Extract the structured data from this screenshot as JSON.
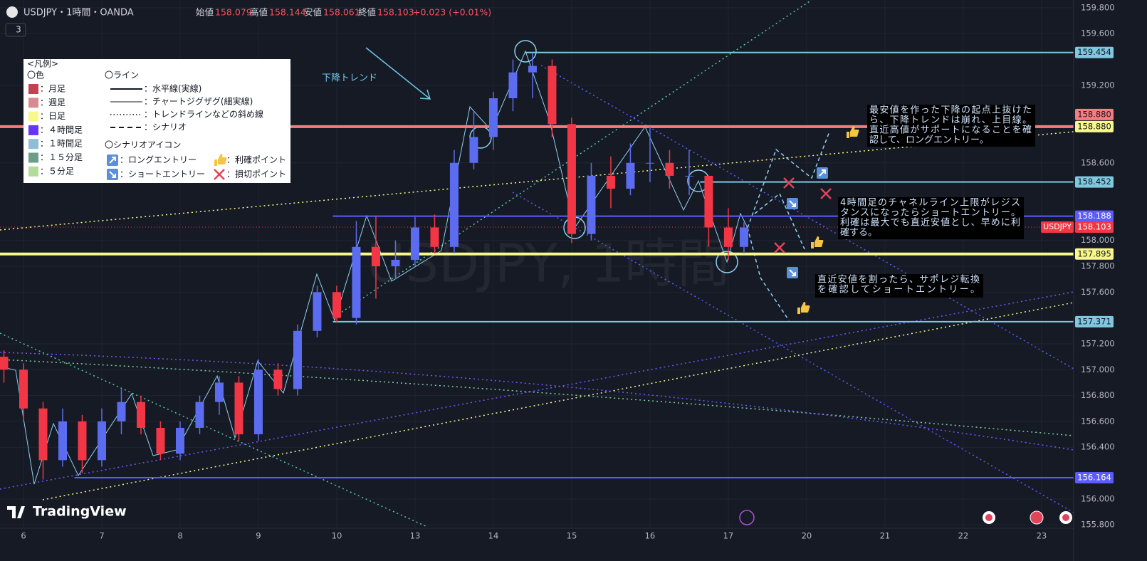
{
  "header": {
    "symbol": "USDJPY・1時間・OANDA",
    "open_label": "始値",
    "open": "158.079",
    "high_label": "高値",
    "high": "158.144",
    "low_label": "安値",
    "low": "158.061",
    "close_label": "終値",
    "close": "158.103",
    "change": "+0.023 (+0.01%)",
    "indicator_count": "3"
  },
  "chart_data": {
    "type": "candlestick",
    "watermark": "USDJPY, 1時間",
    "brand": "TradingView",
    "up_color": "#5b6cf0",
    "down_color": "#f23645",
    "x": [
      -0.25,
      0,
      0.25,
      0.5,
      0.75,
      1,
      1.25,
      1.5,
      1.75,
      2,
      2.25,
      2.5,
      2.75,
      3,
      3.25,
      3.5,
      3.75,
      4,
      4.25,
      4.5,
      4.75,
      5,
      5.25,
      5.5,
      5.75,
      6,
      6.25,
      6.5,
      6.75,
      7,
      7.25,
      7.5,
      7.75,
      8,
      8.25,
      8.5,
      8.75,
      9,
      9.2
    ],
    "ohlc": [
      [
        157.1,
        157.15,
        156.9,
        157.0
      ],
      [
        157.0,
        157.05,
        156.6,
        156.7
      ],
      [
        156.7,
        156.75,
        156.15,
        156.3
      ],
      [
        156.3,
        156.7,
        156.25,
        156.6
      ],
      [
        156.6,
        156.65,
        156.2,
        156.3
      ],
      [
        156.3,
        156.7,
        156.25,
        156.6
      ],
      [
        156.6,
        156.85,
        156.5,
        156.75
      ],
      [
        156.75,
        156.8,
        156.5,
        156.55
      ],
      [
        156.55,
        156.6,
        156.3,
        156.35
      ],
      [
        156.35,
        156.6,
        156.3,
        156.55
      ],
      [
        156.55,
        156.8,
        156.5,
        156.75
      ],
      [
        156.75,
        156.95,
        156.65,
        156.9
      ],
      [
        156.9,
        156.95,
        156.45,
        156.5
      ],
      [
        156.5,
        157.08,
        156.45,
        157.0
      ],
      [
        157.0,
        157.05,
        156.8,
        156.85
      ],
      [
        156.85,
        157.35,
        156.8,
        157.3
      ],
      [
        157.3,
        157.65,
        157.25,
        157.6
      ],
      [
        157.6,
        157.65,
        157.37,
        157.4
      ],
      [
        157.4,
        158.15,
        157.35,
        157.95
      ],
      [
        157.95,
        158.19,
        157.55,
        157.8
      ],
      [
        157.8,
        158.0,
        157.7,
        157.85
      ],
      [
        157.85,
        158.18,
        157.8,
        158.1
      ],
      [
        158.1,
        158.2,
        157.9,
        157.95
      ],
      [
        157.95,
        158.7,
        157.9,
        158.6
      ],
      [
        158.6,
        159.0,
        158.55,
        158.8
      ],
      [
        158.8,
        159.15,
        158.7,
        159.1
      ],
      [
        159.1,
        159.4,
        159.0,
        159.3
      ],
      [
        159.3,
        159.45,
        159.1,
        159.35
      ],
      [
        159.35,
        159.4,
        158.8,
        158.9
      ],
      [
        158.9,
        158.95,
        157.98,
        158.05
      ],
      [
        158.05,
        158.6,
        158.0,
        158.5
      ],
      [
        158.5,
        158.65,
        158.25,
        158.4
      ],
      [
        158.4,
        158.75,
        158.35,
        158.6
      ],
      [
        158.6,
        158.88,
        158.45,
        158.6
      ],
      [
        158.6,
        158.7,
        158.4,
        158.5
      ],
      [
        158.5,
        158.7,
        158.35,
        158.5
      ],
      [
        158.5,
        158.5,
        157.95,
        158.1
      ],
      [
        158.1,
        158.25,
        157.85,
        157.95
      ],
      [
        157.95,
        158.14,
        157.9,
        158.1
      ]
    ],
    "xlim": [
      -0.3,
      13.41
    ],
    "xticks": [
      {
        "value": 0,
        "label": "6"
      },
      {
        "value": 1,
        "label": "7"
      },
      {
        "value": 2,
        "label": "8"
      },
      {
        "value": 3,
        "label": "9"
      },
      {
        "value": 4,
        "label": "10"
      },
      {
        "value": 5,
        "label": "13"
      },
      {
        "value": 6,
        "label": "14"
      },
      {
        "value": 7,
        "label": "15"
      },
      {
        "value": 8,
        "label": "16"
      },
      {
        "value": 9,
        "label": "17"
      },
      {
        "value": 10,
        "label": "20"
      },
      {
        "value": 11,
        "label": "21"
      },
      {
        "value": 12,
        "label": "22"
      },
      {
        "value": 13,
        "label": "23"
      }
    ],
    "ylim": [
      155.63,
      159.86
    ],
    "yticks": [
      {
        "value": 155.8,
        "label": "155.800"
      },
      {
        "value": 156.0,
        "label": "156.000"
      },
      {
        "value": 156.4,
        "label": "156.400"
      },
      {
        "value": 156.6,
        "label": "156.600"
      },
      {
        "value": 156.8,
        "label": "156.800"
      },
      {
        "value": 157.0,
        "label": "157.000"
      },
      {
        "value": 157.2,
        "label": "157.200"
      },
      {
        "value": 157.6,
        "label": "157.600"
      },
      {
        "value": 157.8,
        "label": "157.800"
      },
      {
        "value": 158.0,
        "label": "158.000"
      },
      {
        "value": 158.6,
        "label": "158.600"
      },
      {
        "value": 159.2,
        "label": "159.200"
      },
      {
        "value": 159.6,
        "label": "159.600"
      },
      {
        "value": 159.8,
        "label": "159.800"
      }
    ],
    "levels": [
      {
        "value": 159.454,
        "label": "159.454",
        "color": "#7fc8e0",
        "x_start": 6.4,
        "width": 2
      },
      {
        "value": 158.88,
        "label": "158.880",
        "color": "#f77c80",
        "x_start": -0.3,
        "width": 4
      },
      {
        "value": 158.452,
        "label": "158.452",
        "color": "#7fc8e0",
        "x_start": 8.64,
        "width": 2
      },
      {
        "value": 158.188,
        "label": "158.188",
        "color": "#5b5bff",
        "x_start": 3.95,
        "width": 2
      },
      {
        "value": 157.895,
        "label": "157.895",
        "color": "#f7f78a",
        "x_start": -0.3,
        "width": 4
      },
      {
        "value": 157.371,
        "label": "157.371",
        "color": "#7fc8e0",
        "x_start": 3.95,
        "width": 2
      },
      {
        "value": 156.164,
        "label": "156.164",
        "color": "#5b5bff",
        "x_start": 0.65,
        "width": 2
      }
    ],
    "trend_label": {
      "value": 158.88,
      "label": "158.880",
      "color": "#f7f78a"
    },
    "current_price": {
      "value": 158.103,
      "label": "158.103",
      "name": "USDJPY",
      "color": "#f23645"
    },
    "annotations": {
      "trend": "下降トレンド",
      "notes": [
        [
          "最安値を作った下降の起点上抜けた",
          "ら、下降トレンドは崩れ、上目線。",
          "直近高値がサポートになることを確",
          "認して、ロングエントリー。"
        ],
        [
          "4時間足のチャネルライン上限がレジス",
          "タンスになったらショートエントリー。",
          "利確は最大でも直近安値とし、早めに利",
          "確する。"
        ],
        [
          "直近安値を割ったら、サポレジ転換",
          "を確認してショートエントリー。"
        ]
      ]
    }
  },
  "legend_box": {
    "title": "<凡例>",
    "colors": {
      "heading": "〇色",
      "items": [
        {
          "label": "：月足",
          "color": "#c0444f"
        },
        {
          "label": "：週足",
          "color": "#d88a8f"
        },
        {
          "label": "：日足",
          "color": "#f7f78a"
        },
        {
          "label": "：４時間足",
          "color": "#6633ff"
        },
        {
          "label": "：１時間足",
          "color": "#8fbcd8"
        },
        {
          "label": "：１５分足",
          "color": "#6a9e88"
        },
        {
          "label": "：５分足",
          "color": "#b2dd99"
        }
      ]
    },
    "lines": {
      "heading": "〇ライン",
      "items": [
        "：水平線(実線)",
        "：チャートジグザグ(細実線)",
        "：トレンドラインなどの斜め線",
        "：シナリオ"
      ]
    },
    "icons": {
      "heading": "〇シナリオアイコン",
      "items": [
        "：ロングエントリー",
        "：利確ポイント",
        "：ショートエントリー",
        "：損切ポイント"
      ]
    }
  }
}
